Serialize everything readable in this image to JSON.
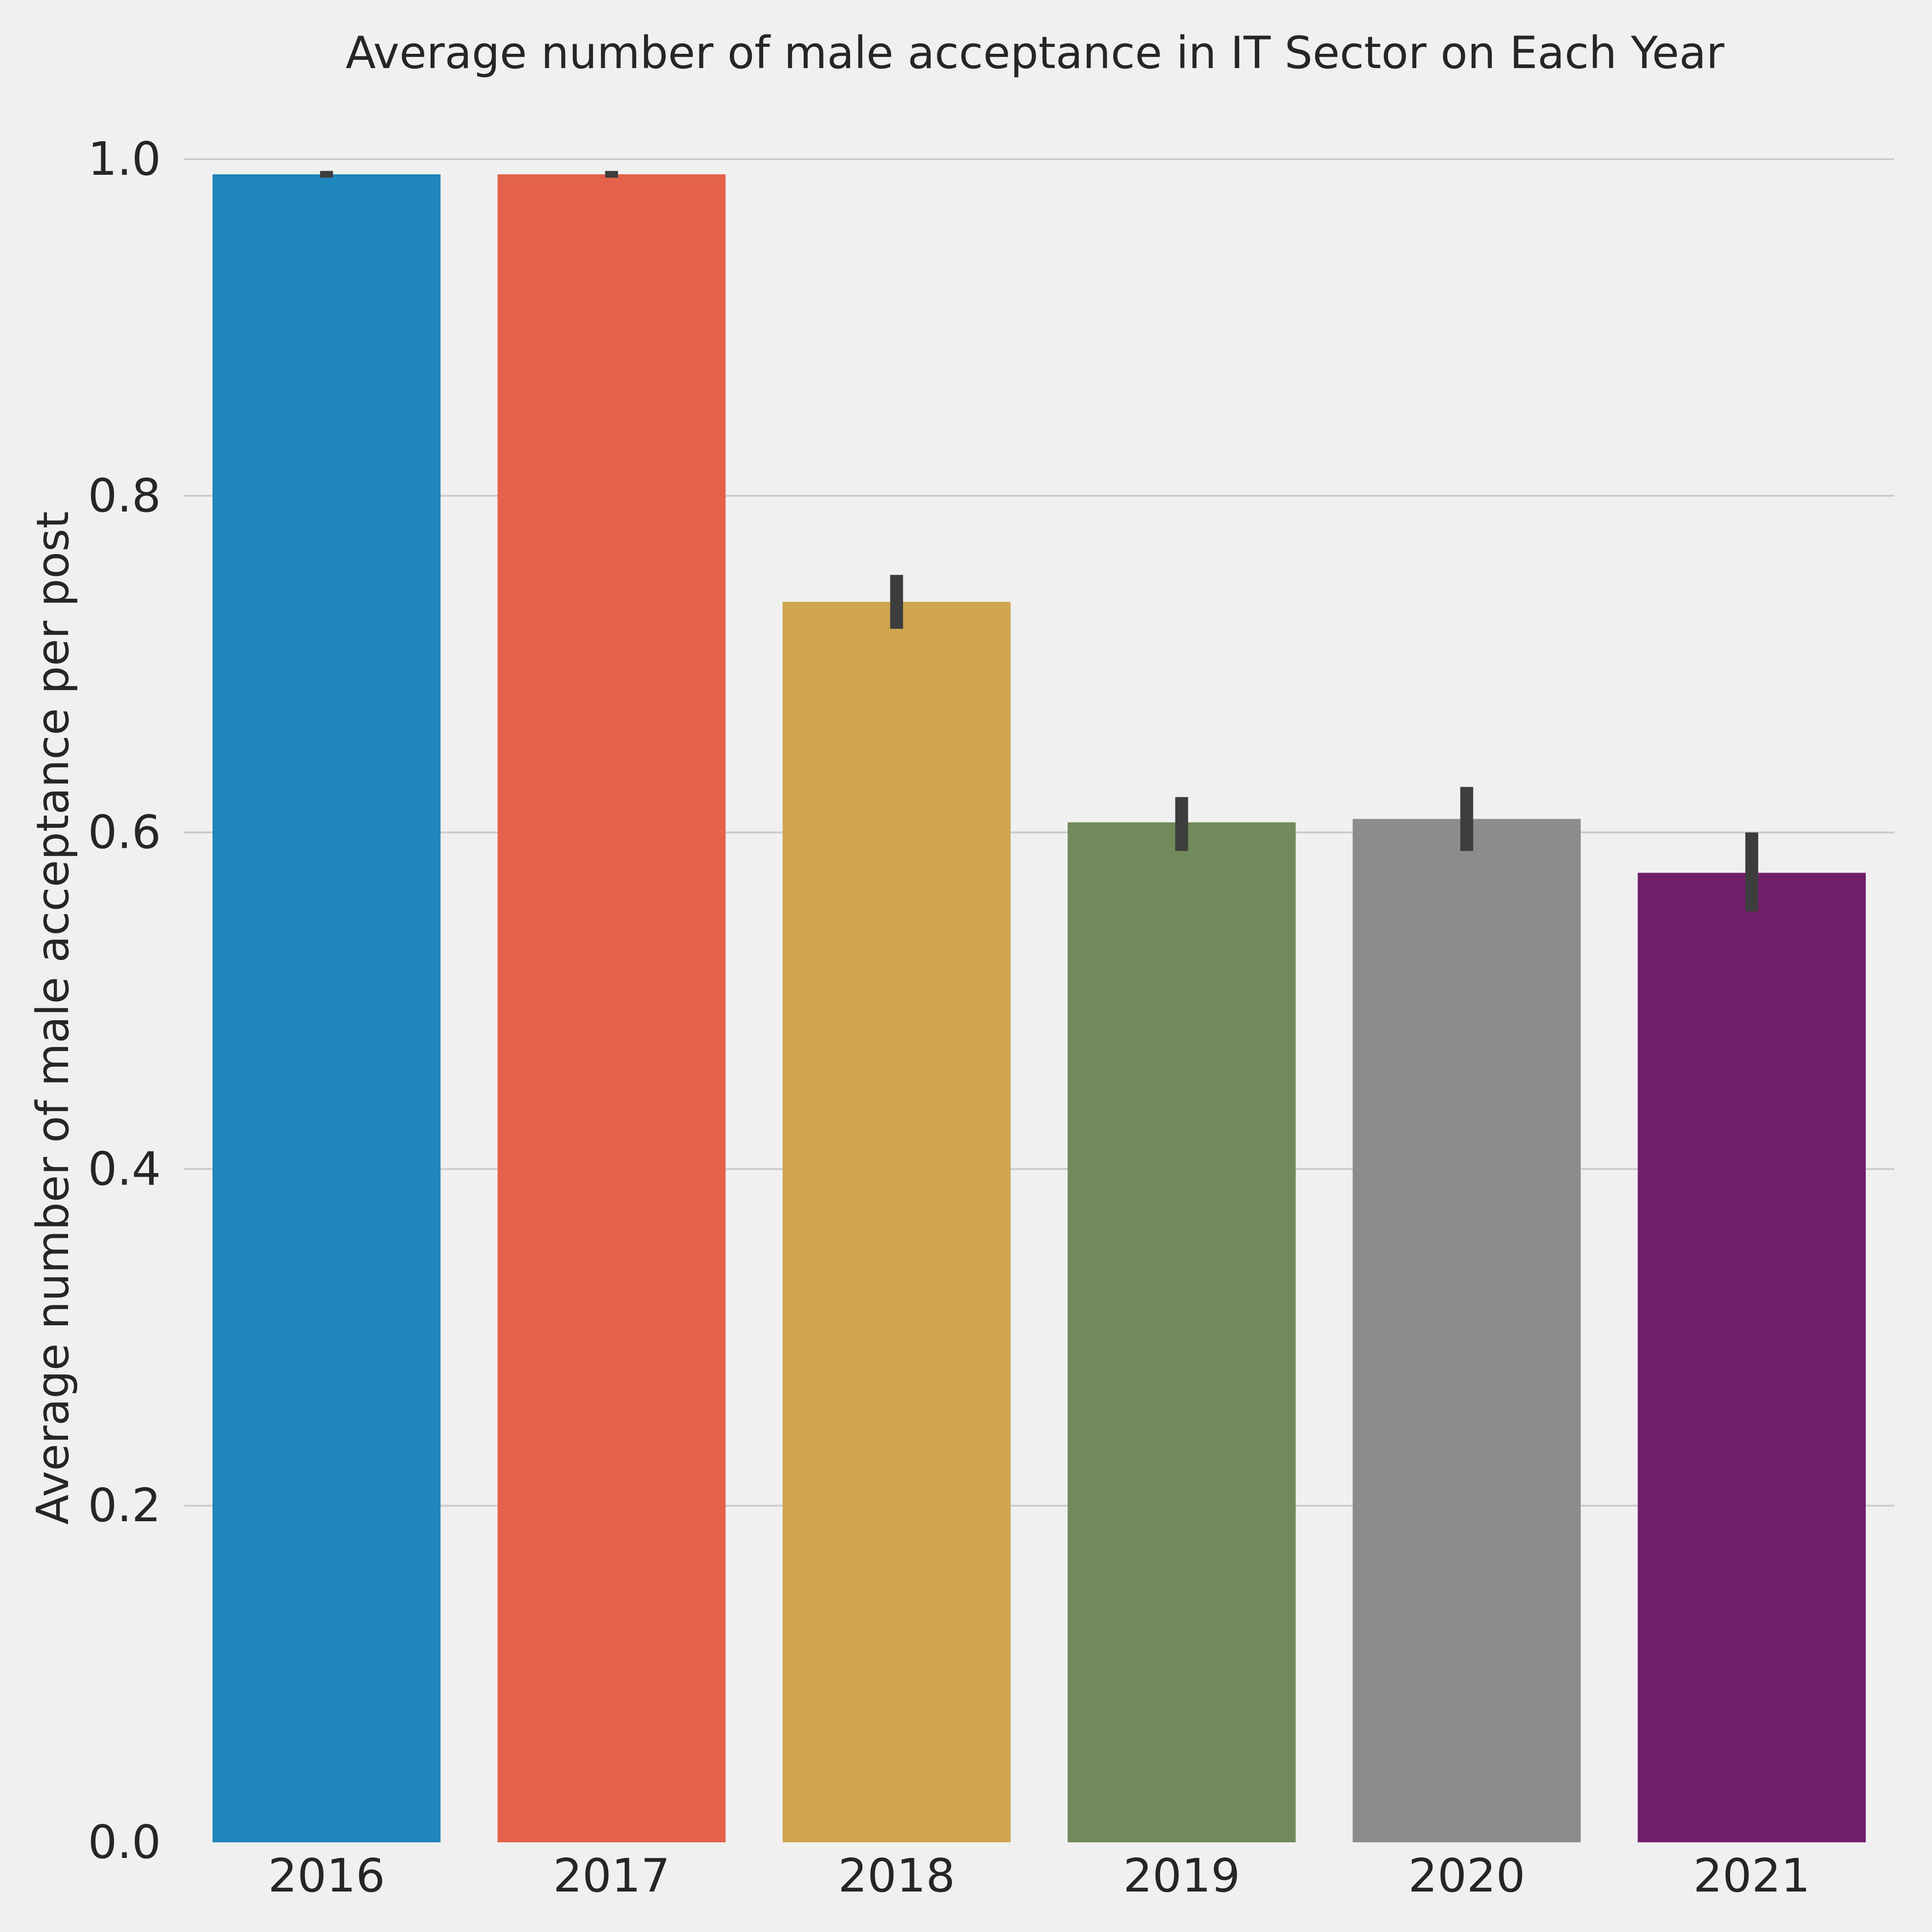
{
  "chart_data": {
    "type": "bar",
    "title": "Average number of male acceptance in IT Sector on Each Year",
    "xlabel": "",
    "ylabel": "Average number of male acceptance per post",
    "categories": [
      "2016",
      "2017",
      "2018",
      "2019",
      "2020",
      "2021"
    ],
    "values": [
      0.991,
      0.991,
      0.737,
      0.606,
      0.608,
      0.576
    ],
    "error_low": [
      0.989,
      0.989,
      0.721,
      0.589,
      0.589,
      0.553
    ],
    "error_high": [
      0.993,
      0.993,
      0.753,
      0.621,
      0.627,
      0.6
    ],
    "colors": [
      "#1f87bb",
      "#e4624a",
      "#cfa64f",
      "#718a5b",
      "#8c8c8c",
      "#711e6b"
    ],
    "ylim": [
      0,
      1.0
    ],
    "yticks": [
      "0.0",
      "0.2",
      "0.4",
      "0.6",
      "0.8",
      "1.0"
    ],
    "grid": true
  }
}
